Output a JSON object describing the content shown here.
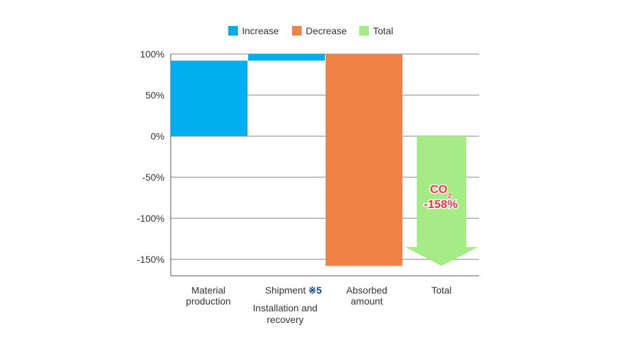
{
  "chart_data": {
    "type": "bar",
    "subtype": "waterfall",
    "legend": [
      {
        "name": "Increase",
        "color": "#00aeef"
      },
      {
        "name": "Decrease",
        "color": "#ef8244"
      },
      {
        "name": "Total",
        "color": "#a5ec86"
      }
    ],
    "legend_position": "top",
    "ylim": [
      -170,
      100
    ],
    "yticks": [
      100,
      50,
      0,
      -50,
      -100,
      -150
    ],
    "ytick_labels": [
      "100%",
      "50%",
      "0%",
      "-50%",
      "-100%",
      "-150%"
    ],
    "grid": true,
    "categories": [
      {
        "lines": [
          "Material",
          "production"
        ]
      },
      {
        "lines": [
          "Shipment"
        ],
        "note": "※5",
        "lines2": [
          "Installation and",
          "recovery"
        ]
      },
      {
        "lines": [
          "Absorbed",
          "amount"
        ]
      },
      {
        "lines": [
          "Total"
        ]
      }
    ],
    "bars": [
      {
        "kind": "increase",
        "start": 0,
        "end": 92
      },
      {
        "kind": "increase",
        "start": 92,
        "end": 100
      },
      {
        "kind": "decrease",
        "start": 100,
        "end": -158
      },
      {
        "kind": "total",
        "start": 0,
        "end": -158
      }
    ],
    "annotation": {
      "line1": "CO",
      "sub": "2",
      "line2": "-158%"
    }
  }
}
